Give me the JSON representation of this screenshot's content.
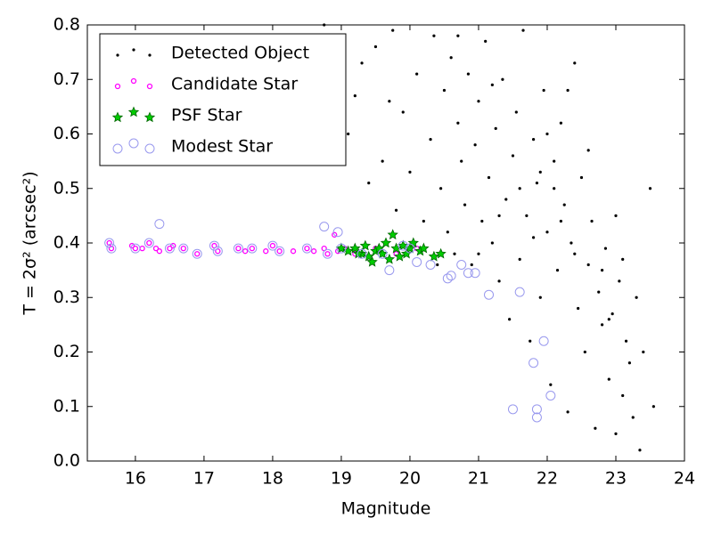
{
  "chart_data": {
    "type": "scatter",
    "xlabel": "Magnitude",
    "ylabel": "T = 2σ² (arcsec²)",
    "xlim": [
      15.3,
      24
    ],
    "ylim": [
      0,
      0.8
    ],
    "xticks": [
      16,
      17,
      18,
      19,
      20,
      21,
      22,
      23,
      24
    ],
    "yticks": [
      {
        "value": 0,
        "label": "0.0"
      },
      {
        "value": 0.1,
        "label": "0.1"
      },
      {
        "value": 0.2,
        "label": "0.2"
      },
      {
        "value": 0.3,
        "label": "0.3"
      },
      {
        "value": 0.4,
        "label": "0.4"
      },
      {
        "value": 0.5,
        "label": "0.5"
      },
      {
        "value": 0.6,
        "label": "0.6"
      },
      {
        "value": 0.7,
        "label": "0.7"
      },
      {
        "value": 0.8,
        "label": "0.8"
      }
    ],
    "legend": "upper left",
    "series": [
      {
        "name": "Detected Object",
        "color": "#000000",
        "marker": "dot",
        "x": [
          18.75,
          19.1,
          19.3,
          19.5,
          19.6,
          19.7,
          19.75,
          19.8,
          19.9,
          20.0,
          20.1,
          20.2,
          20.3,
          20.35,
          20.45,
          20.5,
          20.55,
          20.6,
          20.65,
          20.7,
          20.75,
          20.8,
          20.85,
          20.9,
          20.95,
          21.0,
          21.05,
          21.1,
          21.15,
          21.2,
          21.25,
          21.3,
          21.35,
          21.4,
          21.45,
          21.5,
          21.55,
          21.6,
          21.65,
          21.7,
          21.75,
          21.8,
          21.85,
          21.9,
          21.95,
          22.0,
          22.05,
          22.1,
          22.15,
          22.2,
          22.25,
          22.3,
          22.35,
          22.4,
          22.45,
          22.5,
          22.55,
          22.6,
          22.65,
          22.7,
          22.75,
          22.8,
          22.85,
          22.9,
          22.95,
          23.0,
          23.05,
          23.1,
          23.15,
          23.2,
          23.25,
          23.3,
          23.35,
          23.4,
          23.5,
          23.55,
          21.0,
          20.4,
          21.6,
          22.0,
          22.2,
          22.4,
          21.8,
          22.6,
          23.0,
          22.8,
          21.3,
          21.9,
          22.1,
          22.3,
          19.4,
          19.2,
          23.1,
          22.9,
          21.2,
          20.7
        ],
        "values": [
          0.8,
          0.6,
          0.73,
          0.76,
          0.55,
          0.66,
          0.79,
          0.46,
          0.64,
          0.53,
          0.71,
          0.44,
          0.59,
          0.78,
          0.5,
          0.68,
          0.42,
          0.74,
          0.38,
          0.62,
          0.55,
          0.47,
          0.71,
          0.36,
          0.58,
          0.66,
          0.44,
          0.77,
          0.52,
          0.4,
          0.61,
          0.33,
          0.7,
          0.48,
          0.26,
          0.56,
          0.64,
          0.37,
          0.79,
          0.45,
          0.22,
          0.59,
          0.51,
          0.3,
          0.68,
          0.42,
          0.14,
          0.55,
          0.35,
          0.62,
          0.47,
          0.09,
          0.4,
          0.73,
          0.28,
          0.52,
          0.2,
          0.36,
          0.44,
          0.06,
          0.31,
          0.25,
          0.39,
          0.15,
          0.27,
          0.05,
          0.33,
          0.12,
          0.22,
          0.18,
          0.08,
          0.3,
          0.02,
          0.2,
          0.5,
          0.1,
          0.38,
          0.36,
          0.5,
          0.6,
          0.44,
          0.38,
          0.41,
          0.57,
          0.45,
          0.35,
          0.45,
          0.53,
          0.5,
          0.68,
          0.51,
          0.67,
          0.37,
          0.26,
          0.69,
          0.78
        ]
      },
      {
        "name": "Candidate Star",
        "color": "#ff00ff",
        "marker": "circle",
        "x": [
          15.62,
          15.65,
          15.95,
          16.0,
          16.1,
          16.2,
          16.3,
          16.35,
          16.5,
          16.55,
          16.7,
          16.9,
          17.15,
          17.2,
          17.5,
          17.6,
          17.7,
          17.9,
          18.0,
          18.1,
          18.3,
          18.5,
          18.6,
          18.75,
          18.8,
          18.9,
          18.95,
          19.05,
          19.2,
          19.5,
          19.8,
          20.1
        ],
        "values": [
          0.4,
          0.39,
          0.395,
          0.39,
          0.39,
          0.4,
          0.39,
          0.385,
          0.39,
          0.395,
          0.39,
          0.38,
          0.395,
          0.385,
          0.39,
          0.385,
          0.39,
          0.385,
          0.395,
          0.385,
          0.385,
          0.39,
          0.385,
          0.39,
          0.38,
          0.415,
          0.385,
          0.39,
          0.38,
          0.39,
          0.38,
          0.39
        ]
      },
      {
        "name": "PSF Star",
        "color": "#00aa00",
        "marker": "star",
        "x": [
          19.0,
          19.1,
          19.2,
          19.3,
          19.35,
          19.4,
          19.5,
          19.55,
          19.6,
          19.65,
          19.7,
          19.75,
          19.8,
          19.85,
          19.9,
          20.0,
          20.05,
          20.15,
          20.2,
          20.35,
          20.45,
          19.45,
          19.25,
          19.95
        ],
        "values": [
          0.39,
          0.385,
          0.39,
          0.38,
          0.395,
          0.375,
          0.385,
          0.39,
          0.38,
          0.4,
          0.37,
          0.415,
          0.39,
          0.375,
          0.395,
          0.39,
          0.4,
          0.385,
          0.39,
          0.375,
          0.38,
          0.365,
          0.38,
          0.38
        ]
      },
      {
        "name": "Modest Star",
        "color": "#9999ee",
        "marker": "ring",
        "x": [
          16.35,
          18.75,
          18.95,
          19.7,
          20.1,
          20.3,
          20.55,
          20.6,
          20.75,
          20.85,
          20.95,
          21.15,
          21.6,
          21.95,
          21.8,
          22.05,
          21.85,
          21.85,
          21.5,
          15.62,
          15.65,
          16.0,
          16.2,
          16.5,
          16.7,
          16.9,
          17.15,
          17.2,
          17.5,
          17.7,
          18.0,
          18.1,
          18.5,
          18.8,
          19.0,
          19.3,
          19.6,
          19.9,
          20.0
        ],
        "values": [
          0.435,
          0.43,
          0.42,
          0.35,
          0.365,
          0.36,
          0.335,
          0.34,
          0.36,
          0.345,
          0.345,
          0.305,
          0.31,
          0.22,
          0.18,
          0.12,
          0.095,
          0.08,
          0.095,
          0.4,
          0.39,
          0.39,
          0.4,
          0.39,
          0.39,
          0.38,
          0.395,
          0.385,
          0.39,
          0.39,
          0.395,
          0.385,
          0.39,
          0.38,
          0.39,
          0.38,
          0.38,
          0.395,
          0.39
        ]
      }
    ]
  }
}
